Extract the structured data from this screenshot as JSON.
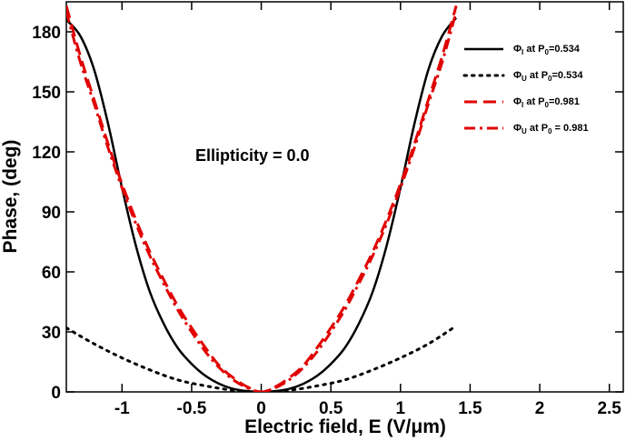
{
  "chart_data": {
    "type": "line",
    "title": "",
    "xlabel": "Electric field, E (V/μm)",
    "ylabel": "Phase, (deg)",
    "xlim": [
      -1.4,
      2.6
    ],
    "ylim": [
      0,
      195
    ],
    "xticks": [
      -1,
      -0.5,
      0,
      0.5,
      1,
      1.5,
      2,
      2.5
    ],
    "xtick_labels": [
      "-1",
      "-0.5",
      "0",
      "0.5",
      "1",
      "1.5",
      "2",
      "2.5"
    ],
    "yticks": [
      0,
      30,
      60,
      90,
      120,
      150,
      180
    ],
    "ytick_labels": [
      "0",
      "30",
      "60",
      "90",
      "120",
      "150",
      "180"
    ],
    "grid": false,
    "legend_position": "top-right",
    "annotation": "Ellipticity = 0.0",
    "series": [
      {
        "name": "ΦI at P0=0.534",
        "legend": {
          "sym": "Φ",
          "sub1": "I",
          "mid": " at P",
          "sub2": "0",
          "tail": "=0.534"
        },
        "color": "#000000",
        "style": "solid",
        "x": [
          -1.4,
          -1.3,
          -1.2,
          -1.1,
          -1.0,
          -0.9,
          -0.8,
          -0.7,
          -0.6,
          -0.5,
          -0.4,
          -0.3,
          -0.2,
          -0.1,
          0.0,
          0.1,
          0.2,
          0.3,
          0.4,
          0.5,
          0.6,
          0.7,
          0.8,
          0.9,
          1.0,
          1.1,
          1.2,
          1.3,
          1.4
        ],
        "y": [
          186,
          178,
          161,
          134,
          102,
          73,
          50,
          34,
          22,
          14,
          8,
          4,
          1.5,
          0.4,
          0,
          0.4,
          1.5,
          4,
          8,
          14,
          22,
          34,
          50,
          73,
          102,
          134,
          161,
          178,
          187
        ]
      },
      {
        "name": "ΦU at P0=0.534",
        "legend": {
          "sym": "Φ",
          "sub1": "U",
          "mid": " at P",
          "sub2": "0",
          "tail": "=0.534"
        },
        "color": "#000000",
        "style": "dotted",
        "x": [
          -1.4,
          -1.2,
          -1.0,
          -0.8,
          -0.6,
          -0.4,
          -0.2,
          0.0,
          0.2,
          0.4,
          0.6,
          0.8,
          1.0,
          1.2,
          1.4
        ],
        "y": [
          32,
          24,
          17,
          11,
          6,
          3,
          0.8,
          0,
          0.8,
          3,
          6,
          11,
          17,
          24,
          33
        ]
      },
      {
        "name": "ΦI at P0=0.981",
        "legend": {
          "sym": "Φ",
          "sub1": "I",
          "mid": " at P",
          "sub2": "0",
          "tail": "=0.981"
        },
        "color": "#e00000",
        "style": "dashed",
        "x": [
          -1.4,
          -1.3,
          -1.2,
          -1.1,
          -1.0,
          -0.9,
          -0.8,
          -0.7,
          -0.6,
          -0.5,
          -0.4,
          -0.3,
          -0.2,
          -0.1,
          0.0,
          0.1,
          0.2,
          0.3,
          0.4,
          0.5,
          0.6,
          0.7,
          0.8,
          0.9,
          1.0,
          1.1,
          1.2,
          1.3,
          1.4
        ],
        "y": [
          193,
          168,
          146,
          124,
          104,
          86,
          70,
          56,
          43,
          32,
          22,
          13,
          7,
          2.5,
          0,
          2.5,
          7,
          13,
          22,
          32,
          43,
          56,
          70,
          86,
          104,
          124,
          146,
          168,
          193
        ]
      },
      {
        "name": "ΦU at P0 = 0.981",
        "legend": {
          "sym": "Φ",
          "sub1": "U",
          "mid": " at P",
          "sub2": "0",
          "tail": " = 0.981"
        },
        "color": "#e00000",
        "style": "dashdot",
        "x": [
          -1.4,
          -1.3,
          -1.2,
          -1.1,
          -1.0,
          -0.9,
          -0.8,
          -0.7,
          -0.6,
          -0.5,
          -0.4,
          -0.3,
          -0.2,
          -0.1,
          0.0,
          0.1,
          0.2,
          0.3,
          0.4,
          0.5,
          0.6,
          0.7,
          0.8,
          0.9,
          1.0,
          1.1,
          1.2,
          1.3,
          1.4
        ],
        "y": [
          190,
          165,
          144,
          122,
          102,
          84,
          68,
          54,
          41,
          30,
          20,
          12,
          6,
          2,
          0,
          2,
          6,
          12,
          20,
          30,
          41,
          54,
          68,
          84,
          102,
          122,
          144,
          165,
          190
        ]
      }
    ]
  }
}
